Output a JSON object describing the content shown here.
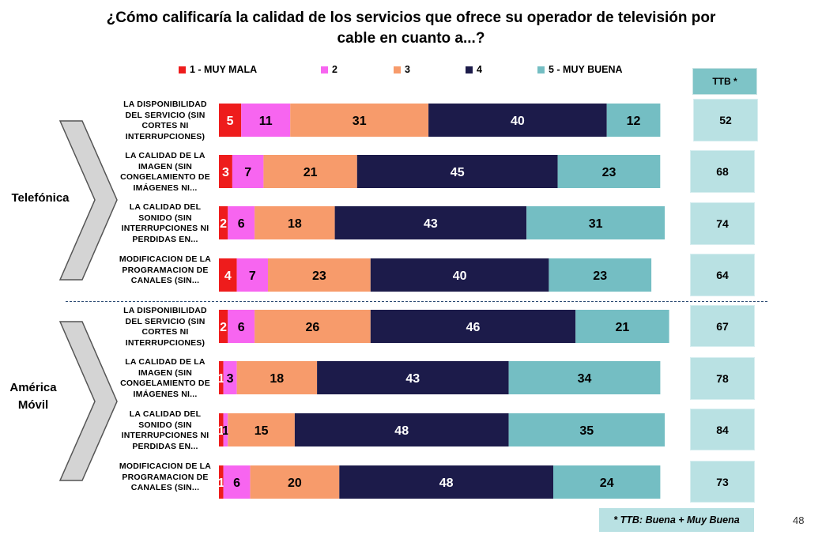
{
  "chart_data": {
    "type": "bar",
    "orientation": "horizontal",
    "stacked": true,
    "title": "¿Cómo calificaría la calidad de los servicios que ofrece su operador de televisión por cable en cuanto a...?",
    "legend": [
      "1 - MUY MALA",
      "2",
      "3",
      "4",
      "5 - MUY BUENA"
    ],
    "colors": [
      "#ee1c1c",
      "#f765f0",
      "#f79b6b",
      "#1c1b4a",
      "#74bec3"
    ],
    "ttb_header": "TTB *",
    "groups": [
      {
        "name": "Telefónica",
        "rows": [
          {
            "label": "LA DISPONIBILIDAD DEL SERVICIO (SIN CORTES NI INTERRUPCIONES)",
            "values": [
              5,
              11,
              31,
              40,
              12
            ],
            "ttb": 52
          },
          {
            "label": "LA CALIDAD DE LA IMAGEN (SIN CONGELAMIENTO DE IMÁGENES NI...",
            "values": [
              3,
              7,
              21,
              45,
              23
            ],
            "ttb": 68
          },
          {
            "label": "LA CALIDAD DEL SONIDO (SIN INTERRUPCIONES NI PERDIDAS EN...",
            "values": [
              2,
              6,
              18,
              43,
              31
            ],
            "ttb": 74
          },
          {
            "label": "MODIFICACION DE LA PROGRAMACION DE CANALES (SIN...",
            "values": [
              4,
              7,
              23,
              40,
              23
            ],
            "ttb": 64
          }
        ]
      },
      {
        "name": "América Móvil",
        "rows": [
          {
            "label": "LA DISPONIBILIDAD DEL SERVICIO (SIN CORTES NI INTERRUPCIONES)",
            "values": [
              2,
              6,
              26,
              46,
              21
            ],
            "ttb": 67
          },
          {
            "label": "LA CALIDAD DE LA IMAGEN (SIN CONGELAMIENTO DE IMÁGENES NI...",
            "values": [
              1,
              3,
              18,
              43,
              34
            ],
            "ttb": 78
          },
          {
            "label": "LA CALIDAD DEL SONIDO (SIN INTERRUPCIONES NI PERDIDAS EN...",
            "values": [
              1,
              1,
              15,
              48,
              35
            ],
            "ttb": 84
          },
          {
            "label": "MODIFICACION DE LA PROGRAMACION DE CANALES (SIN...",
            "values": [
              1,
              6,
              20,
              48,
              24
            ],
            "ttb": 73
          }
        ]
      }
    ]
  },
  "footnote": "* TTB: Buena + Muy Buena",
  "page_number": "48"
}
